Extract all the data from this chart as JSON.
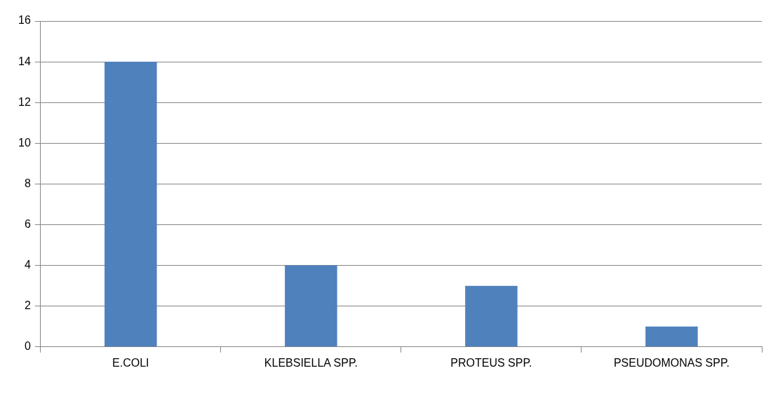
{
  "chart_data": {
    "type": "bar",
    "categories": [
      "E.COLI",
      "KLEBSIELLA SPP.",
      "PROTEUS SPP.",
      "PSEUDOMONAS SPP."
    ],
    "values": [
      14,
      4,
      3,
      1
    ],
    "color": "#4f81bd",
    "ylim": [
      0,
      16
    ],
    "yticks": [
      0,
      2,
      4,
      6,
      8,
      10,
      12,
      14,
      16
    ],
    "grid": "y"
  }
}
